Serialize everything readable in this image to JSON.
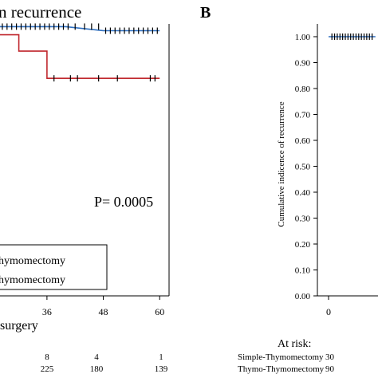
{
  "chart_data": [
    {
      "panel_label": "",
      "title_fragment": "n recurrence",
      "type": "line",
      "x_tick_labels": [
        "36",
        "48",
        "60"
      ],
      "xlabel_fragment": "surgery",
      "xlim": [
        26,
        62
      ],
      "ylim": [
        0,
        1
      ],
      "series": [
        {
          "name": "Thymomectomy",
          "color": "#c0272d",
          "steps": [
            [
              26,
              0.96
            ],
            [
              30,
              0.96
            ],
            [
              30,
              0.9
            ],
            [
              36,
              0.9
            ],
            [
              36,
              0.8
            ],
            [
              60,
              0.8
            ]
          ],
          "censor_x": [
            37.5,
            41,
            42.5,
            47,
            51,
            58,
            59
          ]
        },
        {
          "name": "hymomectomy",
          "color": "#2e6fc0",
          "steps": [
            [
              26,
              0.99
            ],
            [
              40,
              0.99
            ],
            [
              48,
              0.975
            ],
            [
              60,
              0.975
            ]
          ],
          "censor_x": [
            26.5,
            27.5,
            28.5,
            29.5,
            30.5,
            31.5,
            32.5,
            33.5,
            34.5,
            35.5,
            36.5,
            37.5,
            38.5,
            39.5,
            40.5,
            42,
            44,
            45.5,
            47,
            48.5,
            49.5,
            50.5,
            51.5,
            52.5,
            53.5,
            54.5,
            55.5,
            56.5,
            57.5,
            58.5,
            59.5
          ]
        }
      ],
      "legend_entries": [
        "hymomectomy",
        "hymomectomy"
      ],
      "annotation": "P= 0.0005",
      "at_risk": {
        "rows": [
          [
            "8",
            "4",
            "1"
          ],
          [
            "225",
            "180",
            "139"
          ]
        ]
      }
    },
    {
      "panel_label": "B",
      "type": "line",
      "ylabel": "Cumulative indicence of recurrence",
      "y_tick_labels": [
        "1.00",
        "0.90",
        "0.80",
        "0.70",
        "0.60",
        "0.50",
        "0.40",
        "0.30",
        "0.20",
        "0.10",
        "0.00"
      ],
      "x_tick_labels": [
        "0"
      ],
      "ylim": [
        0,
        1
      ],
      "series": [
        {
          "name": "",
          "color": "#2e6fc0",
          "steps": [
            [
              0,
              1.0
            ],
            [
              14,
              1.0
            ]
          ],
          "censor_x": [
            1,
            1.8,
            2.6,
            3.4,
            4.2,
            5,
            5.8,
            6.6,
            7.4,
            8.2,
            9,
            9.8,
            10.6,
            11.4,
            12.2,
            13
          ]
        }
      ],
      "at_risk": {
        "heading": "At risk:",
        "rows": [
          {
            "label": "Simple-Thymomectomy",
            "value": "30"
          },
          {
            "label": "Thymo-Thymomectomy",
            "value": "90"
          }
        ]
      }
    }
  ]
}
